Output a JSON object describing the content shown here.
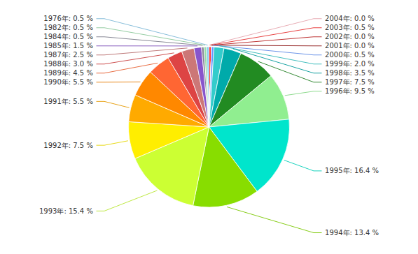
{
  "chart_data": {
    "type": "pie",
    "values": [
      0.001,
      0.5,
      0.001,
      0.001,
      0.5,
      2.0,
      3.5,
      7.5,
      9.5,
      16.4,
      13.4,
      15.4,
      7.5,
      5.5,
      5.5,
      4.5,
      3.0,
      2.5,
      1.5,
      0.5,
      0.5,
      0.5
    ],
    "value_labels": [
      "2004年: 0.0 %",
      "2003年: 0.5 %",
      "2002年: 0.0 %",
      "2001年: 0.0 %",
      "2000年: 0.5 %",
      "1999年: 2.0 %",
      "1998年: 3.5 %",
      "1997年: 7.5 %",
      "1996年: 9.5 %",
      "1995年: 16.4 %",
      "1994年: 13.4 %",
      "1993年: 15.4 %",
      "1992年: 7.5 %",
      "1991年: 5.5 %",
      "1990年: 5.5 %",
      "1989年: 4.5 %",
      "1988年: 3.0 %",
      "1987年: 2.5 %",
      "1985年: 1.5 %",
      "1984年: 0.5 %",
      "1982年: 0.5 %",
      "1976年: 0.5 %"
    ],
    "colors": [
      "#FFB6C1",
      "#FF3333",
      "#CC2222",
      "#991111",
      "#6699FF",
      "#33CCCC",
      "#00AAAA",
      "#228B22",
      "#90EE90",
      "#00E5CC",
      "#88DD00",
      "#CCFF33",
      "#FFEE00",
      "#FFAA00",
      "#FF8800",
      "#FF6633",
      "#DD4444",
      "#CC7777",
      "#8855CC",
      "#888899",
      "#99DDAA",
      "#88CCEE"
    ],
    "data_labels": true
  }
}
